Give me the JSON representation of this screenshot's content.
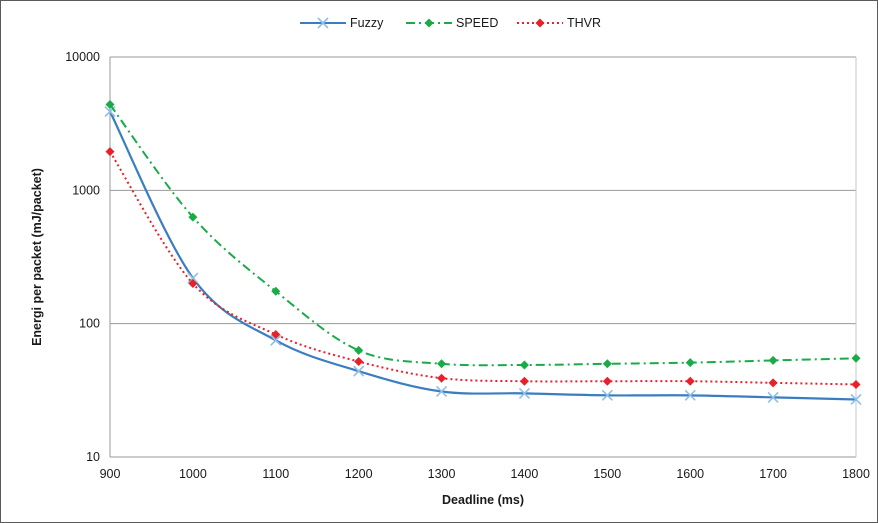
{
  "chart_data": {
    "type": "line",
    "title": "",
    "xlabel": "Deadline (ms)",
    "ylabel": "Energi per packet  (mJ/packet)",
    "x": [
      900,
      1000,
      1100,
      1200,
      1300,
      1400,
      1500,
      1600,
      1700,
      1800
    ],
    "x_tick_labels": [
      "900",
      "1000",
      "1100",
      "1200",
      "1300",
      "1400",
      "1500",
      "1600",
      "1700",
      "1800"
    ],
    "y_scale": "log",
    "ylim": [
      10,
      10000
    ],
    "y_tick_labels": [
      "10",
      "100",
      "1000",
      "10000"
    ],
    "y_tick_values": [
      10,
      100,
      1000,
      10000
    ],
    "grid": "horizontal",
    "legend_position": "top",
    "series": [
      {
        "name": "Fuzzy",
        "color": "#3a7dc0",
        "marker": "x",
        "line": "solid",
        "values": [
          3900,
          220,
          75,
          44,
          31,
          30,
          29,
          29,
          28,
          27
        ]
      },
      {
        "name": "SPEED",
        "color": "#1aab48",
        "marker": "diamond",
        "line": "dashdot",
        "values": [
          4400,
          630,
          175,
          63,
          50,
          49,
          50,
          51,
          53,
          55
        ]
      },
      {
        "name": "THVR",
        "color": "#e8202a",
        "marker": "diamond",
        "line": "dotted",
        "values": [
          1950,
          200,
          83,
          52,
          39,
          37,
          37,
          37,
          36,
          35
        ]
      }
    ]
  }
}
